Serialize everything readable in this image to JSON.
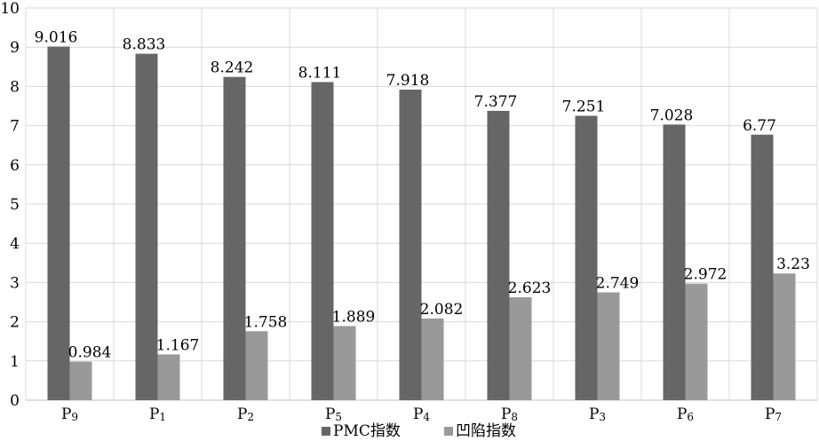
{
  "chart_data": {
    "type": "bar",
    "categories": [
      {
        "base": "P",
        "sub": "9"
      },
      {
        "base": "P",
        "sub": "1"
      },
      {
        "base": "P",
        "sub": "2"
      },
      {
        "base": "P",
        "sub": "5"
      },
      {
        "base": "P",
        "sub": "4"
      },
      {
        "base": "P",
        "sub": "8"
      },
      {
        "base": "P",
        "sub": "3"
      },
      {
        "base": "P",
        "sub": "6"
      },
      {
        "base": "P",
        "sub": "7"
      }
    ],
    "series": [
      {
        "name": "PMC指数",
        "color": "#666666",
        "values": [
          9.016,
          8.833,
          8.242,
          8.111,
          7.918,
          7.377,
          7.251,
          7.028,
          6.77
        ],
        "labels": [
          "9.016",
          "8.833",
          "8.242",
          "8.111",
          "7.918",
          "7.377",
          "7.251",
          "7.028",
          "6.77"
        ]
      },
      {
        "name": "凹陷指数",
        "color": "#999999",
        "values": [
          0.984,
          1.167,
          1.758,
          1.889,
          2.082,
          2.623,
          2.749,
          2.972,
          3.23
        ],
        "labels": [
          "0.984",
          "1.167",
          "1.758",
          "1.889",
          "2.082",
          "2.623",
          "2.749",
          "2.972",
          "3.23"
        ]
      }
    ],
    "ylim": [
      0,
      10
    ],
    "yticks": [
      "0",
      "1",
      "2",
      "3",
      "4",
      "5",
      "6",
      "7",
      "8",
      "9",
      "10"
    ],
    "grid": true,
    "legend_position": "bottom"
  }
}
